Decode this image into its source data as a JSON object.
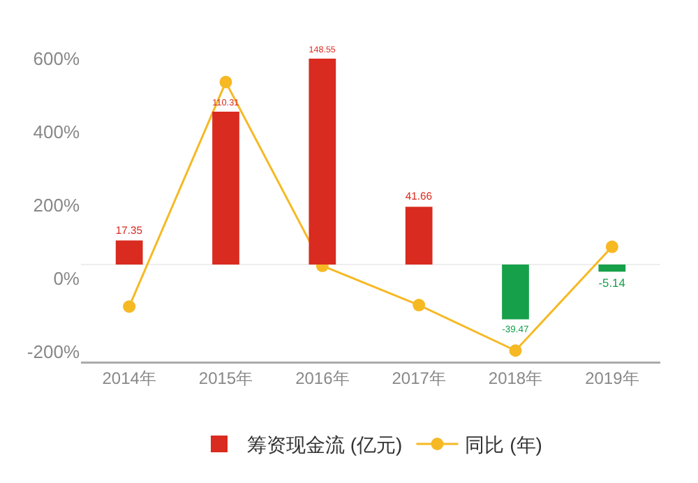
{
  "chart_data": {
    "type": "bar",
    "categories": [
      "2014年",
      "2015年",
      "2016年",
      "2017年",
      "2018年",
      "2019年"
    ],
    "series": [
      {
        "name": "筹资现金流 (亿元)",
        "axis": "y2",
        "colors": [
          "#d92b1f",
          "#d92b1f",
          "#d92b1f",
          "#d92b1f",
          "#16a04a",
          "#16a04a"
        ],
        "values": [
          17.35,
          110.31,
          148.55,
          41.66,
          -39.47,
          -5.14
        ],
        "value_labels": [
          "17.35",
          "110.31",
          "148.55",
          "41.66",
          "-39.47",
          "-5.14"
        ]
      },
      {
        "name": "同比 (年)",
        "type": "line",
        "color": "#f6b924",
        "marker": "circle",
        "values": [
          -76,
          536,
          35,
          -72,
          -196,
          87
        ]
      }
    ],
    "ylim": [
      -226,
      600
    ],
    "yticks": [
      {
        "value": -200,
        "label": "-200%"
      },
      {
        "value": 0,
        "label": "0%"
      },
      {
        "value": 200,
        "label": "200%"
      },
      {
        "value": 400,
        "label": "400%"
      },
      {
        "value": 600,
        "label": "600%"
      }
    ],
    "y2lim": [
      -70,
      148.55
    ],
    "ref_lines": [
      {
        "axis": "y2",
        "value": 0,
        "color": "#eeeeee"
      }
    ],
    "legend": "bottom",
    "grid": false
  }
}
